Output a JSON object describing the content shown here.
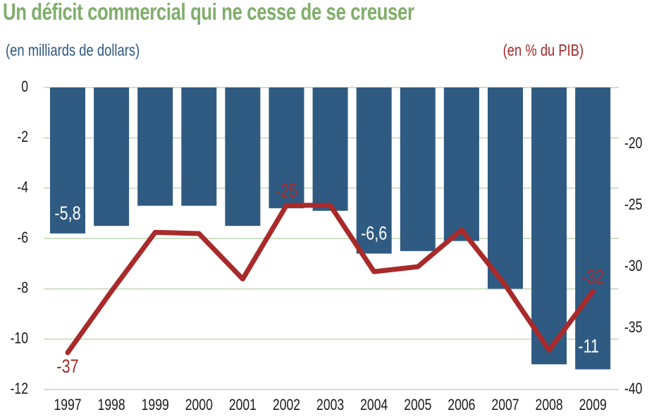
{
  "chart_data": {
    "type": "bar",
    "title": "Un déficit commercial qui ne cesse de se creuser",
    "ylabel_left": "(en milliards de dollars)",
    "ylabel_right": "(en % du PIB)",
    "categories": [
      "1997",
      "1998",
      "1999",
      "2000",
      "2001",
      "2002",
      "2003",
      "2004",
      "2005",
      "2006",
      "2007",
      "2008",
      "2009"
    ],
    "series": [
      {
        "type": "bar",
        "axis": "left",
        "color": "#2f5a82",
        "values": [
          -5.8,
          -5.5,
          -4.7,
          -4.7,
          -5.5,
          -4.8,
          -4.9,
          -6.6,
          -6.5,
          -6.1,
          -8.0,
          -11.0,
          -11.2
        ]
      },
      {
        "type": "line",
        "axis": "right",
        "color": "#a82a2a",
        "values": [
          -37,
          -32,
          -27.2,
          -27.3,
          -31,
          -25,
          -25,
          -30.4,
          -30,
          -27,
          -31.5,
          -36.8,
          -32
        ]
      }
    ],
    "ylim_left": [
      -12,
      0
    ],
    "yticks_left": [
      0,
      -2,
      -4,
      -6,
      -8,
      -10,
      -12
    ],
    "ytick_labels_left": [
      "0",
      "-2",
      "-4",
      "-6",
      "-8",
      "-10",
      "-12"
    ],
    "ylim_right": [
      -40,
      -15.4
    ],
    "yticks_right": [
      -20,
      -25,
      -30,
      -35,
      -40
    ],
    "ytick_labels_right": [
      "-20",
      "-25",
      "-30",
      "-35",
      "-40"
    ],
    "annotations": [
      {
        "series": 0,
        "index": 0,
        "text": "-5,8"
      },
      {
        "series": 0,
        "index": 7,
        "text": "-6,6"
      },
      {
        "series": 0,
        "index": 12,
        "text": "-11"
      },
      {
        "series": 1,
        "index": 0,
        "text": "-37"
      },
      {
        "series": 1,
        "index": 5,
        "text": "-25"
      },
      {
        "series": 1,
        "index": 12,
        "text": "-32"
      }
    ],
    "grid": true,
    "grid_color": "#cfe0c6",
    "title_color": "#7fae6b"
  }
}
